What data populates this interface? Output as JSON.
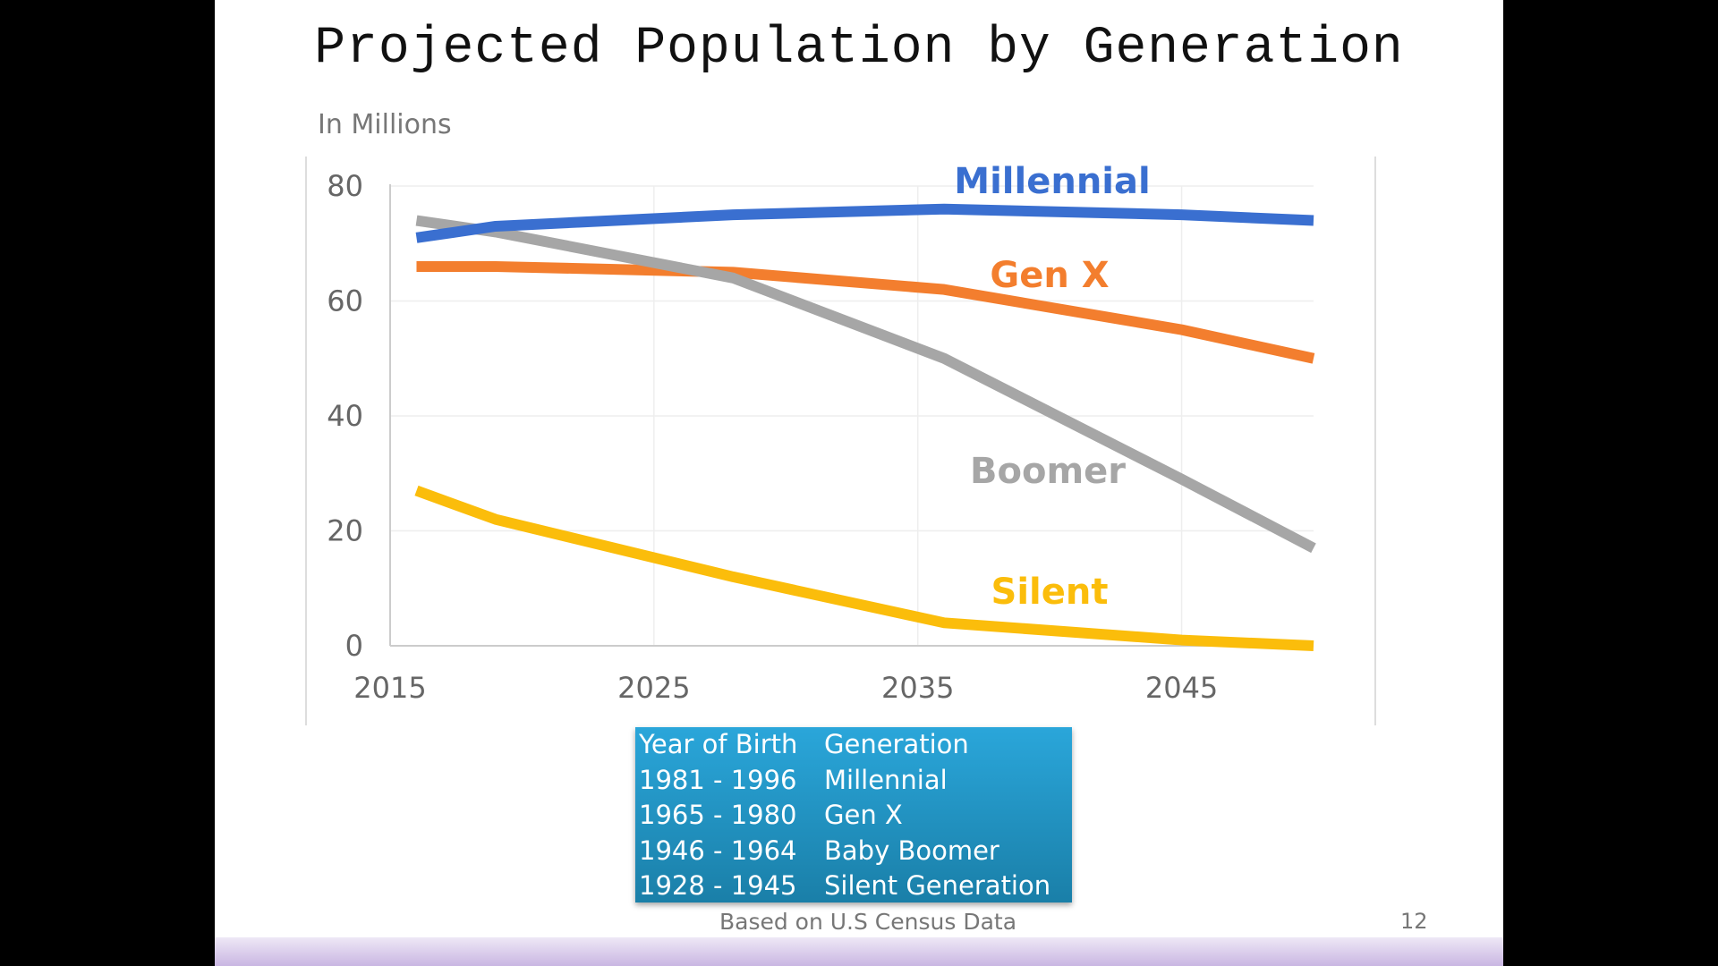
{
  "slide": {
    "title": "Projected Population by Generation",
    "units_label": "In Millions",
    "source": "Based on U.S Census Data",
    "page_number": "12"
  },
  "chart_data": {
    "type": "line",
    "title": "Projected Population by Generation",
    "ylabel": "In Millions",
    "xlabel": "",
    "x": [
      2016,
      2019,
      2028,
      2036,
      2045,
      2050
    ],
    "xlim": [
      2015,
      2050
    ],
    "ylim": [
      0,
      80
    ],
    "x_ticks": [
      "2015",
      "2025",
      "2035",
      "2045"
    ],
    "x_tick_values": [
      2015,
      2025,
      2035,
      2045
    ],
    "y_ticks": [
      "0",
      "20",
      "40",
      "60",
      "80"
    ],
    "y_tick_values": [
      0,
      20,
      40,
      60,
      80
    ],
    "grid": true,
    "legend": "inline-labels",
    "series": [
      {
        "name": "Millennial",
        "color": "#3a6fd0",
        "values": [
          71,
          73,
          75,
          76,
          75,
          74
        ]
      },
      {
        "name": "Gen X",
        "color": "#f37e2e",
        "values": [
          66,
          66,
          65,
          62,
          55,
          50
        ]
      },
      {
        "name": "Boomer",
        "color": "#a6a6a6",
        "values": [
          74,
          72,
          64,
          50,
          29,
          17
        ]
      },
      {
        "name": "Silent",
        "color": "#fbbd0b",
        "values": [
          27,
          22,
          12,
          4,
          1,
          0
        ]
      }
    ]
  },
  "table": {
    "headers": [
      "Year of Birth",
      "Generation"
    ],
    "rows": [
      [
        "1981 - 1996",
        "Millennial"
      ],
      [
        "1965 - 1980",
        "Gen X"
      ],
      [
        "1946 - 1964",
        "Baby Boomer"
      ],
      [
        "1928 - 1945",
        "Silent Generation"
      ]
    ]
  }
}
